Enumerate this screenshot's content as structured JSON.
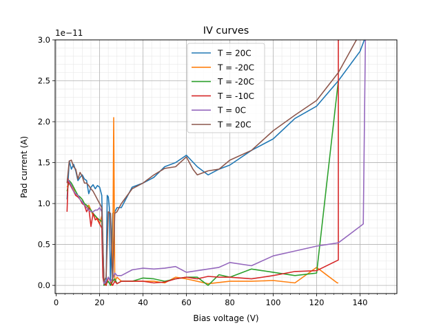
{
  "chart_data": {
    "type": "line",
    "title": "IV curves",
    "xlabel": "Bias voltage (V)",
    "ylabel": "Pad current (A)",
    "y_offset_label": "1e−11",
    "xlim": [
      -0.5,
      157
    ],
    "ylim": [
      -0.1,
      3.0
    ],
    "x_ticks": [
      0,
      20,
      40,
      60,
      80,
      100,
      120,
      140
    ],
    "y_ticks": [
      0.0,
      0.5,
      1.0,
      1.5,
      2.0,
      2.5,
      3.0
    ],
    "x_tick_labels": [
      "0",
      "20",
      "40",
      "60",
      "80",
      "100",
      "120",
      "140"
    ],
    "y_tick_labels": [
      "0.0",
      "0.5",
      "1.0",
      "1.5",
      "2.0",
      "2.5",
      "3.0"
    ],
    "grid": true,
    "legend_position": "top-center",
    "series": [
      {
        "name": "T = 20C",
        "color": "#1f77b4",
        "x": [
          5,
          6,
          7,
          8,
          9,
          10,
          11,
          12,
          13,
          14,
          15,
          16,
          17,
          18,
          19,
          20,
          21,
          22,
          22.5,
          23,
          23.5,
          24,
          24.5,
          25,
          26,
          27,
          28,
          30,
          35,
          40,
          45,
          50,
          55,
          60,
          65,
          70,
          75,
          80,
          90,
          100,
          110,
          120,
          130,
          140,
          142
        ],
        "y": [
          1.05,
          1.52,
          1.42,
          1.48,
          1.4,
          1.28,
          1.32,
          1.35,
          1.3,
          1.28,
          1.12,
          1.2,
          1.23,
          1.18,
          1.22,
          1.2,
          1.1,
          0.0,
          0.05,
          0.0,
          1.1,
          1.08,
          0.95,
          0.02,
          0.88,
          0.9,
          0.95,
          0.95,
          1.2,
          1.25,
          1.32,
          1.45,
          1.5,
          1.59,
          1.45,
          1.35,
          1.42,
          1.47,
          1.65,
          1.79,
          2.04,
          2.19,
          2.5,
          2.86,
          3.0
        ]
      },
      {
        "name": "T = -20C",
        "color": "#ff7f0e",
        "x": [
          5,
          6,
          7,
          8,
          9,
          10,
          11,
          12,
          13,
          14,
          15,
          16,
          17,
          18,
          19,
          20,
          21,
          22,
          23,
          24,
          25,
          25.5,
          26,
          26.5,
          27,
          28,
          30,
          35,
          40,
          45,
          50,
          55,
          60,
          70,
          80,
          90,
          100,
          110,
          120,
          125,
          129.5,
          130
        ],
        "y": [
          1.2,
          1.25,
          1.22,
          1.18,
          1.1,
          1.08,
          1.08,
          1.05,
          1.0,
          0.95,
          0.98,
          0.92,
          0.85,
          0.85,
          0.8,
          0.75,
          0.85,
          0.05,
          0.0,
          0.1,
          0.05,
          0.0,
          0.1,
          2.05,
          0.05,
          0.1,
          0.05,
          0.05,
          0.05,
          0.05,
          0.03,
          0.1,
          0.08,
          0.02,
          0.05,
          0.05,
          0.06,
          0.03,
          0.22,
          0.12,
          0.03,
          0.03
        ]
      },
      {
        "name": "T = -20C",
        "color": "#2ca02c",
        "x": [
          5,
          6,
          7,
          8,
          9,
          10,
          11,
          12,
          13,
          14,
          15,
          16,
          17,
          18,
          19,
          20,
          21,
          22,
          23,
          24,
          25,
          26,
          27,
          28,
          30,
          35,
          40,
          45,
          50,
          55,
          60,
          65,
          70,
          75,
          80,
          90,
          100,
          110,
          120,
          130
        ],
        "y": [
          1.15,
          1.28,
          1.25,
          1.2,
          1.15,
          1.1,
          1.08,
          1.05,
          1.0,
          0.98,
          0.95,
          0.92,
          0.88,
          0.85,
          0.82,
          0.8,
          0.78,
          0.0,
          0.02,
          0.05,
          0.0,
          0.05,
          0.08,
          0.02,
          0.05,
          0.05,
          0.09,
          0.08,
          0.05,
          0.08,
          0.1,
          0.1,
          0.0,
          0.13,
          0.1,
          0.2,
          0.16,
          0.12,
          0.15,
          2.5
        ]
      },
      {
        "name": "T = -10C",
        "color": "#d62728",
        "x": [
          5,
          5.5,
          6,
          7,
          8,
          9,
          10,
          11,
          12,
          13,
          14,
          15,
          16,
          17,
          18,
          19,
          20,
          21,
          21.5,
          22,
          23,
          24,
          25,
          26,
          27,
          28,
          30,
          35,
          40,
          45,
          50,
          55,
          60,
          65,
          70,
          75,
          80,
          90,
          100,
          110,
          120,
          130,
          130
        ],
        "y": [
          0.9,
          1.3,
          1.25,
          1.2,
          1.15,
          1.1,
          1.08,
          1.05,
          1.0,
          0.98,
          0.9,
          0.95,
          0.72,
          0.88,
          0.8,
          0.82,
          0.75,
          0.7,
          0.1,
          0.02,
          0.0,
          0.1,
          0.05,
          0.0,
          0.05,
          0.02,
          0.05,
          0.05,
          0.05,
          0.03,
          0.04,
          0.08,
          0.1,
          0.08,
          0.11,
          0.1,
          0.1,
          0.08,
          0.12,
          0.17,
          0.18,
          0.31,
          3.0
        ]
      },
      {
        "name": "T = 0C",
        "color": "#9467bd",
        "x": [
          5,
          6,
          7,
          8,
          9,
          10,
          11,
          12,
          13,
          14,
          15,
          16,
          17,
          18,
          19,
          20,
          21,
          22,
          23,
          24,
          25,
          26,
          27,
          28,
          30,
          35,
          40,
          45,
          50,
          55,
          60,
          65,
          70,
          75,
          80,
          90,
          100,
          110,
          120,
          130,
          140,
          141.5,
          142.5
        ],
        "y": [
          1.3,
          1.27,
          1.22,
          1.15,
          1.12,
          1.1,
          1.05,
          1.02,
          0.98,
          0.95,
          0.92,
          0.9,
          0.9,
          0.92,
          0.92,
          0.95,
          0.9,
          0.02,
          0.05,
          0.1,
          0.05,
          0.08,
          0.15,
          0.12,
          0.12,
          0.19,
          0.21,
          0.2,
          0.21,
          0.23,
          0.16,
          0.18,
          0.2,
          0.22,
          0.28,
          0.24,
          0.36,
          0.42,
          0.48,
          0.52,
          0.72,
          0.75,
          3.0
        ]
      },
      {
        "name": "T = 20C",
        "color": "#8c564b",
        "x": [
          5,
          6,
          7,
          8,
          9,
          10,
          11,
          12,
          13,
          14,
          15,
          16,
          17,
          18,
          19,
          20,
          21,
          22,
          23,
          24,
          25,
          26,
          27,
          28,
          30,
          35,
          40,
          45,
          50,
          55,
          60,
          63,
          65,
          70,
          75,
          80,
          90,
          100,
          110,
          120,
          130,
          140
        ],
        "y": [
          1.25,
          1.52,
          1.53,
          1.45,
          1.42,
          1.3,
          1.38,
          1.33,
          1.25,
          1.25,
          1.22,
          1.18,
          1.15,
          1.1,
          1.05,
          1.0,
          0.95,
          0.05,
          0.1,
          0.9,
          0.88,
          0.05,
          0.88,
          0.9,
          1.0,
          1.18,
          1.25,
          1.35,
          1.43,
          1.45,
          1.57,
          1.42,
          1.35,
          1.4,
          1.42,
          1.53,
          1.65,
          1.89,
          2.08,
          2.26,
          2.6,
          3.08
        ]
      }
    ]
  }
}
